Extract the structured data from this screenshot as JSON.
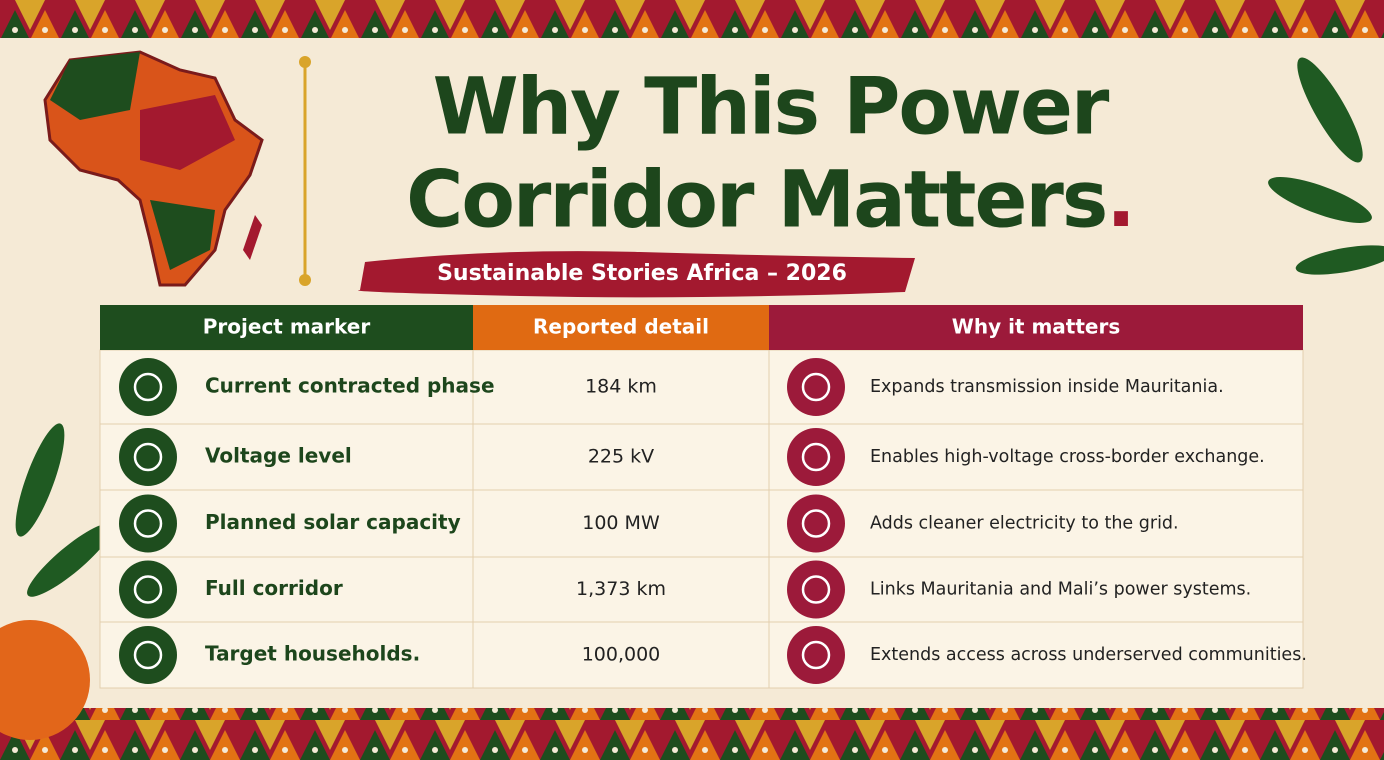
{
  "header": {
    "title_lines": [
      "Why This Power",
      "Corridor Matters."
    ],
    "subtitle": "Sustainable Stories Africa – 2026"
  },
  "table": {
    "columns": [
      "Project marker",
      "Reported detail",
      "Why it matters"
    ],
    "rows": [
      [
        "Current contracted phase",
        "184 km",
        "Expands transmission inside Mauritania."
      ],
      [
        "Voltage level",
        "225 kV",
        "Enables high-voltage cross-border exchange."
      ],
      [
        "Planned solar capacity",
        "100 MW",
        "Adds cleaner electricity to the grid."
      ],
      [
        "Full corridor",
        "1,373 km",
        "Links Mauritania and Mali’s power systems."
      ],
      [
        "Target households.",
        "100,000",
        "Extends access across underserved communities."
      ]
    ]
  }
}
